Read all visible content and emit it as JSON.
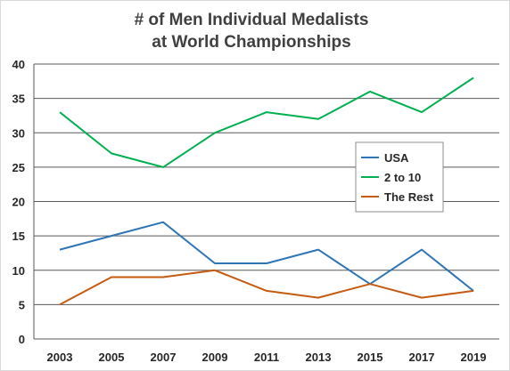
{
  "chart_data": {
    "type": "line",
    "title": "# of Men Individual Medalists",
    "subtitle": "at World Championships",
    "xlabel": "",
    "ylabel": "",
    "x": [
      "2003",
      "2005",
      "2007",
      "2009",
      "2011",
      "2013",
      "2015",
      "2017",
      "2019"
    ],
    "ylim": [
      0,
      40
    ],
    "yticks": [
      "0",
      "5",
      "10",
      "15",
      "20",
      "25",
      "30",
      "35",
      "40"
    ],
    "grid": true,
    "legend_position": "right",
    "series": [
      {
        "name": "USA",
        "color": "#2e75b6",
        "values": [
          13,
          15,
          17,
          11,
          11,
          13,
          8,
          13,
          7
        ]
      },
      {
        "name": "2 to 10",
        "color": "#00b050",
        "values": [
          33,
          27,
          25,
          30,
          33,
          32,
          36,
          33,
          38
        ]
      },
      {
        "name": "The Rest",
        "color": "#c55a11",
        "values": [
          5,
          9,
          9,
          10,
          7,
          6,
          8,
          6,
          7
        ]
      }
    ]
  }
}
